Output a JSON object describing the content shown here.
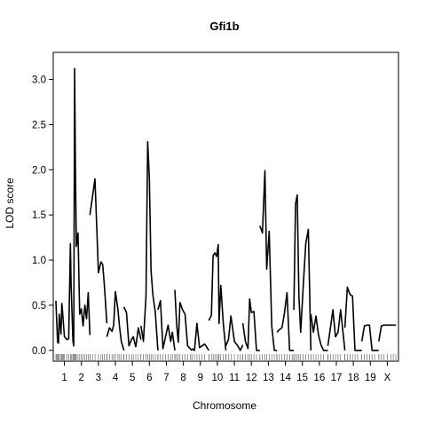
{
  "chart_data": {
    "type": "line",
    "title": "Gfi1b",
    "xlabel": "Chromosome",
    "ylabel": "LOD score",
    "ylim": [
      -0.12,
      3.3
    ],
    "yticks": [
      0.0,
      0.5,
      1.0,
      1.5,
      2.0,
      2.5,
      3.0
    ],
    "ytick_labels": [
      "0.0",
      "0.5",
      "1.0",
      "1.5",
      "2.0",
      "2.5",
      "3.0"
    ],
    "grid": false,
    "legend": "none",
    "line_color": "#000000",
    "chromosomes": [
      {
        "label": "1",
        "start": 0,
        "length": 20,
        "pos": [
          0,
          1,
          2,
          3,
          4,
          6,
          7,
          8,
          9,
          10,
          13,
          15,
          17,
          18,
          20
        ],
        "lod": [
          0.55,
          0.3,
          0.09,
          0.08,
          0.4,
          0.18,
          0.52,
          0.4,
          0.28,
          0.15,
          0.12,
          0.13,
          1.18,
          0.7,
          0.1
        ]
      },
      {
        "label": "2",
        "start": 20,
        "length": 20,
        "pos": [
          0,
          1,
          2,
          3,
          4,
          6,
          8,
          10,
          12,
          14,
          16,
          18,
          20
        ],
        "lod": [
          0.1,
          0.05,
          3.12,
          2.0,
          1.15,
          1.3,
          0.4,
          0.46,
          0.27,
          0.5,
          0.35,
          0.64,
          0.17
        ]
      },
      {
        "label": "3",
        "start": 40,
        "length": 20,
        "pos": [
          0,
          3,
          6,
          10,
          13,
          15,
          17,
          20
        ],
        "lod": [
          1.5,
          1.7,
          1.9,
          0.86,
          0.98,
          0.95,
          0.72,
          0.3
        ]
      },
      {
        "label": "4",
        "start": 60,
        "length": 20,
        "pos": [
          0,
          3,
          6,
          8,
          10,
          13,
          15,
          17,
          20
        ],
        "lod": [
          0.15,
          0.25,
          0.21,
          0.28,
          0.65,
          0.45,
          0.25,
          0.1,
          0.0
        ]
      },
      {
        "label": "5",
        "start": 80,
        "length": 20,
        "pos": [
          0,
          3,
          6,
          9,
          11,
          14,
          17,
          20
        ],
        "lod": [
          0.48,
          0.42,
          0.05,
          0.12,
          0.15,
          0.04,
          0.25,
          0.12
        ]
      },
      {
        "label": "6",
        "start": 100,
        "length": 20,
        "pos": [
          0,
          3,
          6,
          8,
          10,
          12,
          14,
          17,
          20
        ],
        "lod": [
          0.27,
          0.1,
          0.6,
          2.31,
          1.9,
          0.88,
          0.62,
          0.42,
          0.0
        ]
      },
      {
        "label": "7",
        "start": 120,
        "length": 20,
        "pos": [
          0,
          3,
          6,
          9,
          12,
          15,
          17,
          20
        ],
        "lod": [
          0.45,
          0.55,
          0.02,
          0.15,
          0.28,
          0.1,
          0.2,
          0.0
        ]
      },
      {
        "label": "8",
        "start": 140,
        "length": 20,
        "pos": [
          0,
          2,
          4,
          6,
          9,
          12,
          15,
          18,
          20
        ],
        "lod": [
          0.67,
          0.3,
          0.09,
          0.53,
          0.45,
          0.4,
          0.05,
          0.02,
          0.0
        ]
      },
      {
        "label": "9",
        "start": 160,
        "length": 20,
        "pos": [
          0,
          3,
          6,
          9,
          12,
          15,
          20
        ],
        "lod": [
          0.02,
          0.0,
          0.3,
          0.03,
          0.05,
          0.07,
          0.0
        ]
      },
      {
        "label": "10",
        "start": 180,
        "length": 20,
        "pos": [
          0,
          3,
          5,
          7,
          9,
          11,
          12,
          14,
          17,
          20
        ],
        "lod": [
          0.33,
          0.39,
          1.05,
          1.08,
          1.04,
          1.17,
          0.3,
          0.72,
          0.3,
          0.0
        ]
      },
      {
        "label": "11",
        "start": 200,
        "length": 20,
        "pos": [
          0,
          3,
          6,
          10,
          14,
          17,
          20
        ],
        "lod": [
          0.05,
          0.12,
          0.38,
          0.1,
          0.05,
          0.0,
          0.06
        ]
      },
      {
        "label": "12",
        "start": 220,
        "length": 20,
        "pos": [
          0,
          3,
          6,
          8,
          10,
          13,
          16,
          20
        ],
        "lod": [
          0.3,
          0.1,
          0.02,
          0.57,
          0.42,
          0.43,
          0.0,
          0.0
        ]
      },
      {
        "label": "13",
        "start": 240,
        "length": 20,
        "pos": [
          0,
          3,
          6,
          8,
          11,
          14,
          17,
          20
        ],
        "lod": [
          1.38,
          1.3,
          1.99,
          0.9,
          1.32,
          0.27,
          0.0,
          0.0
        ]
      },
      {
        "label": "14",
        "start": 260,
        "length": 20,
        "pos": [
          0,
          3,
          6,
          9,
          12,
          15,
          18,
          20
        ],
        "lod": [
          0.2,
          0.23,
          0.25,
          0.42,
          0.64,
          0.0,
          0.0,
          0.0
        ]
      },
      {
        "label": "15",
        "start": 280,
        "length": 20,
        "pos": [
          0,
          2,
          4,
          6,
          8,
          11,
          14,
          17,
          20
        ],
        "lod": [
          0.45,
          1.62,
          1.72,
          0.6,
          0.2,
          0.7,
          1.18,
          1.34,
          0.0
        ]
      },
      {
        "label": "16",
        "start": 300,
        "length": 20,
        "pos": [
          0,
          3,
          6,
          9,
          12,
          15,
          20
        ],
        "lod": [
          0.4,
          0.2,
          0.38,
          0.17,
          0.06,
          0.0,
          0.0
        ]
      },
      {
        "label": "17",
        "start": 320,
        "length": 20,
        "pos": [
          0,
          3,
          6,
          9,
          12,
          15,
          20
        ],
        "lod": [
          0.05,
          0.25,
          0.45,
          0.15,
          0.2,
          0.45,
          0.0
        ]
      },
      {
        "label": "18",
        "start": 340,
        "length": 20,
        "pos": [
          0,
          3,
          6,
          9,
          12,
          15,
          20
        ],
        "lod": [
          0.25,
          0.7,
          0.62,
          0.6,
          0.0,
          0.0,
          0.0
        ]
      },
      {
        "label": "19",
        "start": 360,
        "length": 20,
        "pos": [
          0,
          3,
          6,
          9,
          12,
          15,
          20
        ],
        "lod": [
          0.1,
          0.27,
          0.28,
          0.28,
          0.0,
          0.0,
          0.0
        ]
      },
      {
        "label": "X",
        "start": 380,
        "length": 20,
        "pos": [
          0,
          3,
          6,
          10,
          14,
          17,
          20
        ],
        "lod": [
          0.1,
          0.27,
          0.28,
          0.28,
          0.28,
          0.28,
          0.28
        ]
      }
    ]
  }
}
